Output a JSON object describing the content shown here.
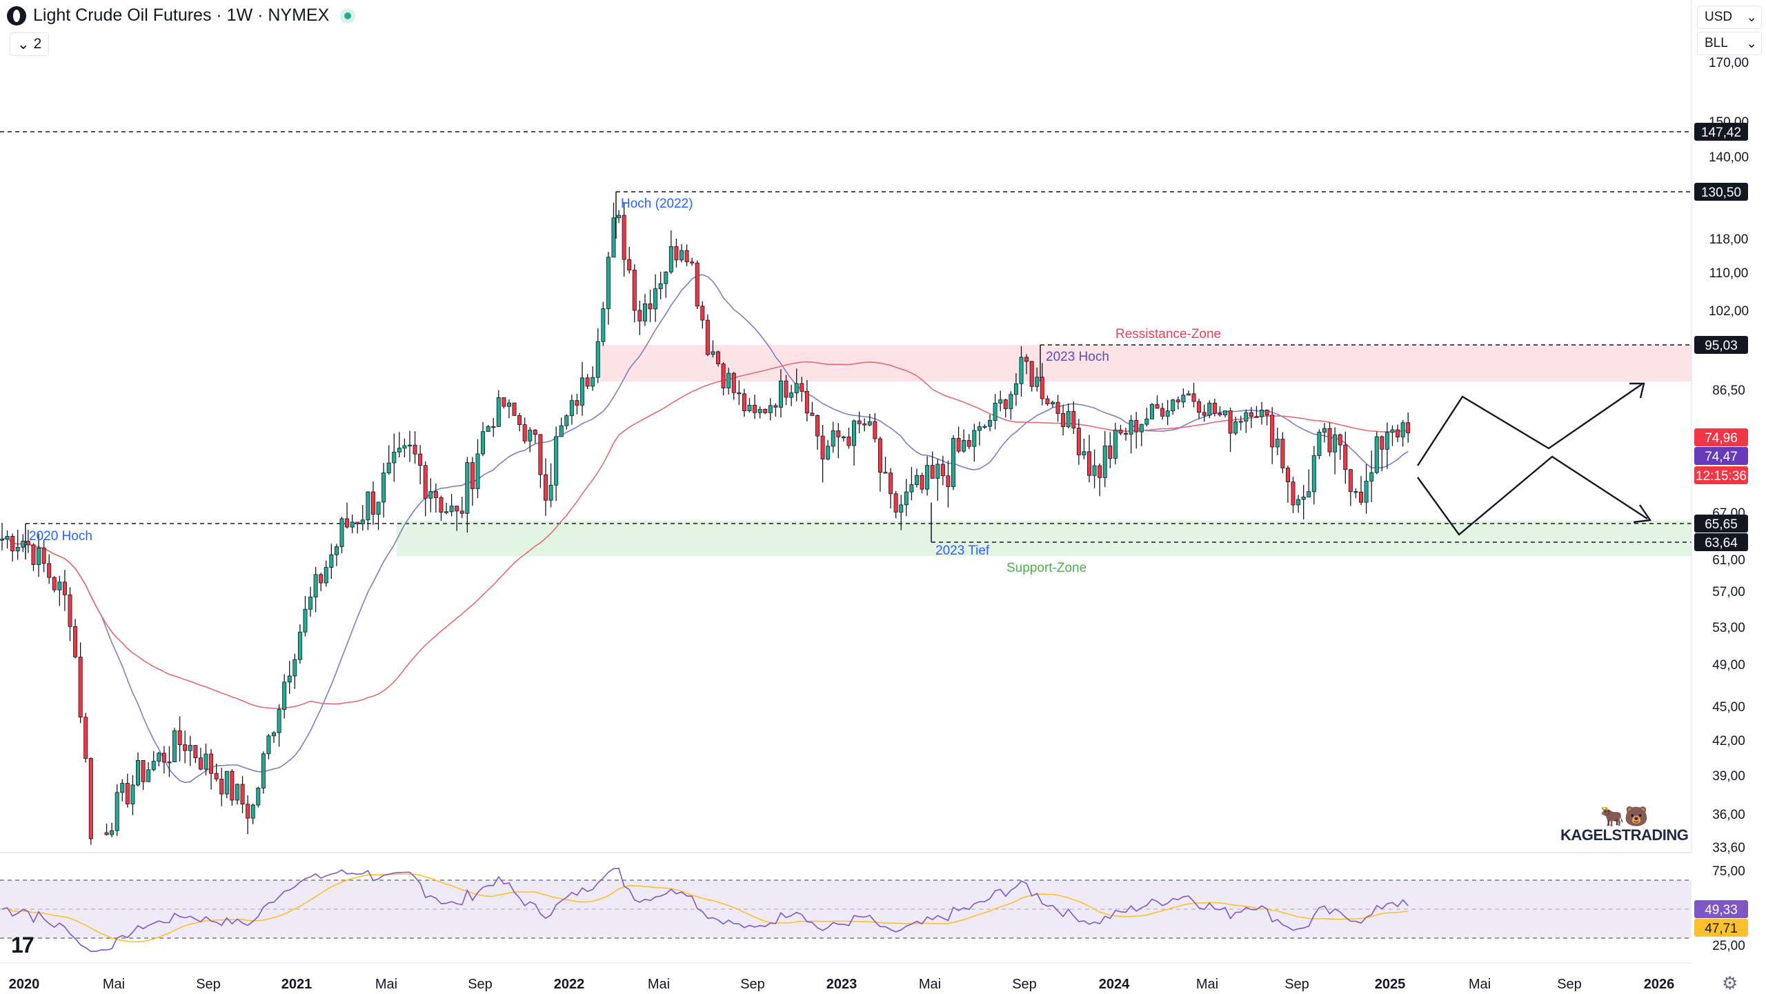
{
  "header": {
    "title": "Light Crude Oil Futures · 1W · NYMEX",
    "indicators_count": "2"
  },
  "selectors": {
    "currency": "USD",
    "unit": "BLL"
  },
  "price_axis": {
    "ticks": [
      "170,00",
      "150,00",
      "140,00",
      "118,00",
      "110,00",
      "102,00",
      "86,50",
      "67,00",
      "61,00",
      "57,00",
      "53,00",
      "49,00",
      "45,00",
      "42,00",
      "39,00",
      "36,00",
      "33,60"
    ],
    "labels": [
      {
        "text": "147,42",
        "bg": "#131722",
        "fg": "#ffffff"
      },
      {
        "text": "130,50",
        "bg": "#131722",
        "fg": "#ffffff"
      },
      {
        "text": "95,03",
        "bg": "#131722",
        "fg": "#ffffff"
      },
      {
        "text": "74,96",
        "bg": "#f23645",
        "fg": "#ffffff"
      },
      {
        "text": "74,47",
        "bg": "#673ab7",
        "fg": "#ffffff"
      },
      {
        "text": "12:15:36",
        "bg": "#f23645",
        "fg": "#ffffff"
      },
      {
        "text": "65,65",
        "bg": "#131722",
        "fg": "#ffffff"
      },
      {
        "text": "63,64",
        "bg": "#131722",
        "fg": "#ffffff"
      }
    ]
  },
  "rsi_axis": {
    "ticks": [
      "75,00",
      "25,00"
    ],
    "labels": [
      {
        "text": "49,33",
        "bg": "#7e57c2",
        "fg": "#ffffff"
      },
      {
        "text": "47,71",
        "bg": "#fbc02d",
        "fg": "#131722"
      }
    ]
  },
  "time_axis": [
    "2020",
    "Mai",
    "Sep",
    "2021",
    "Mai",
    "Sep",
    "2022",
    "Mai",
    "Sep",
    "2023",
    "Mai",
    "Sep",
    "2024",
    "Mai",
    "Sep",
    "2025",
    "Mai",
    "Sep",
    "2026"
  ],
  "annotations": {
    "hoch_2020": "2020 Hoch",
    "hoch_2022": "Hoch (2022)",
    "hoch_2023": "2023 Hoch",
    "tief_2023": "2023 Tief",
    "resistance": "Ressistance-Zone",
    "support": "Support-Zone"
  },
  "brand": {
    "name": "KAGELSTRADING"
  },
  "colors": {
    "up": "#22ab94",
    "down": "#f23645",
    "sma_fast": "#7b7fbf",
    "sma_slow": "#e06b72",
    "resistance_zone": "#fde3e5",
    "support_zone": "#e3f4e3",
    "rsi_line": "#7e57c2",
    "rsi_ma": "#fbc02d"
  },
  "chart_data": {
    "type": "candlestick",
    "instrument": "Light Crude Oil Futures",
    "interval": "1W",
    "exchange": "NYMEX",
    "currency": "USD",
    "x_range": [
      "2020-01",
      "2026-01"
    ],
    "y_axis_price_range": [
      33.6,
      170.0
    ],
    "price_anchor_points": [
      {
        "date": "2020-01",
        "price": 64.0
      },
      {
        "date": "2020-03",
        "price": 55.0
      },
      {
        "date": "2020-04",
        "price": 33.6
      },
      {
        "date": "2020-06",
        "price": 39.0
      },
      {
        "date": "2020-08",
        "price": 42.0
      },
      {
        "date": "2020-11",
        "price": 36.0
      },
      {
        "date": "2021-01",
        "price": 52.0
      },
      {
        "date": "2021-03",
        "price": 65.0
      },
      {
        "date": "2021-06",
        "price": 73.0
      },
      {
        "date": "2021-08",
        "price": 66.0
      },
      {
        "date": "2021-10",
        "price": 83.0
      },
      {
        "date": "2021-12",
        "price": 70.0
      },
      {
        "date": "2022-02",
        "price": 92.0
      },
      {
        "date": "2022-03",
        "price": 124.0
      },
      {
        "date": "2022-04",
        "price": 101.0
      },
      {
        "date": "2022-06",
        "price": 119.0
      },
      {
        "date": "2022-07",
        "price": 96.0
      },
      {
        "date": "2022-09",
        "price": 79.0
      },
      {
        "date": "2022-11",
        "price": 90.0
      },
      {
        "date": "2022-12",
        "price": 73.0
      },
      {
        "date": "2023-02",
        "price": 78.0
      },
      {
        "date": "2023-03",
        "price": 67.0
      },
      {
        "date": "2023-05",
        "price": 70.0
      },
      {
        "date": "2023-07",
        "price": 76.0
      },
      {
        "date": "2023-09",
        "price": 91.0
      },
      {
        "date": "2023-12",
        "price": 71.0
      },
      {
        "date": "2024-04",
        "price": 86.0
      },
      {
        "date": "2024-06",
        "price": 78.0
      },
      {
        "date": "2024-07",
        "price": 83.0
      },
      {
        "date": "2024-09",
        "price": 67.0
      },
      {
        "date": "2024-10",
        "price": 75.0
      },
      {
        "date": "2024-12",
        "price": 69.0
      },
      {
        "date": "2025-01",
        "price": 78.0
      },
      {
        "date": "2025-01",
        "price": 74.96
      }
    ],
    "horizontal_levels": [
      147.42,
      130.5,
      95.03,
      65.65,
      63.64
    ],
    "zones": [
      {
        "name": "Ressistance-Zone",
        "from": 88.0,
        "to": 95.03
      },
      {
        "name": "Support-Zone",
        "from": 61.5,
        "to": 66.0
      }
    ],
    "last_price": 74.96,
    "sma_value": 74.47,
    "countdown": "12:15:36",
    "rsi": {
      "value": 49.33,
      "ma": 47.71,
      "upper": 75,
      "lower": 25
    }
  }
}
